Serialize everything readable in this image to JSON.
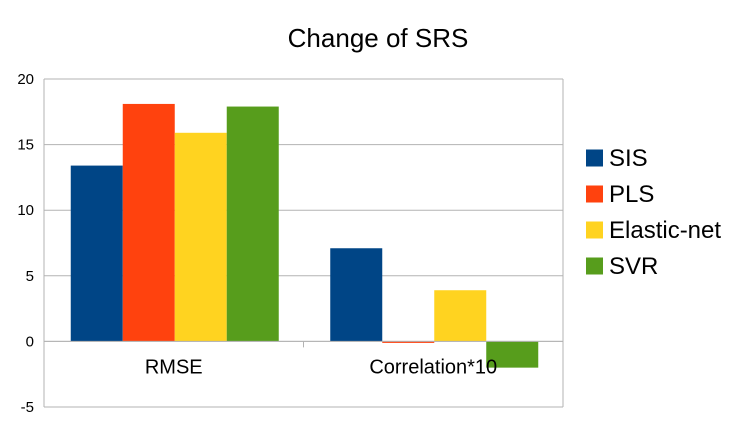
{
  "chart_data": {
    "type": "bar",
    "title": "Change of SRS",
    "categories": [
      "RMSE",
      "Correlation*10"
    ],
    "series": [
      {
        "name": "SIS",
        "color": "#004586",
        "values": [
          13.4,
          7.1
        ]
      },
      {
        "name": "PLS",
        "color": "#ff420e",
        "values": [
          18.1,
          -0.1
        ]
      },
      {
        "name": "Elastic-net",
        "color": "#ffd320",
        "values": [
          15.9,
          3.9
        ]
      },
      {
        "name": "SVR",
        "color": "#579d1c",
        "values": [
          17.9,
          -2.0
        ]
      }
    ],
    "ylim": [
      -5,
      20
    ],
    "yticks": [
      -5,
      0,
      5,
      10,
      15,
      20
    ],
    "grid": true,
    "legend_position": "right"
  }
}
